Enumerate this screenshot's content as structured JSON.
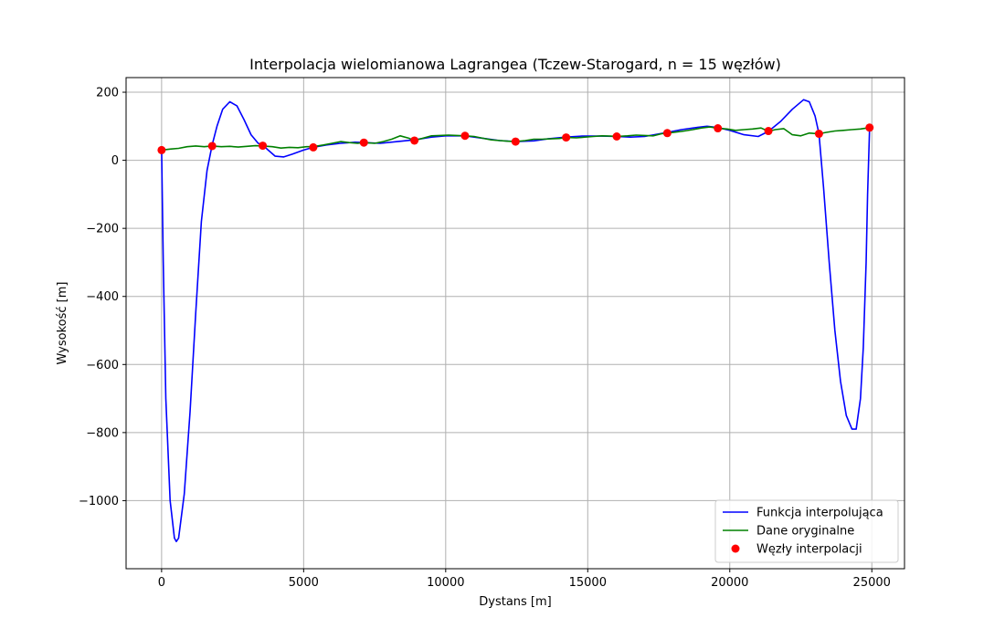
{
  "chart_data": {
    "type": "line",
    "title": "Interpolacja wielomianowa Lagrangea (Tczew-Starogard, n = 15 węzłów)",
    "xlabel": "Dystans [m]",
    "ylabel": "Wysokość [m]",
    "xlim": [
      -1250,
      26150
    ],
    "ylim": [
      -1200,
      243
    ],
    "xticks": [
      0,
      5000,
      10000,
      15000,
      20000,
      25000
    ],
    "xtick_labels": [
      "0",
      "5000",
      "10000",
      "15000",
      "20000",
      "25000"
    ],
    "yticks": [
      -1000,
      -800,
      -600,
      -400,
      -200,
      0,
      200
    ],
    "ytick_labels": [
      "−1000",
      "−800",
      "−600",
      "−400",
      "−200",
      "0",
      "200"
    ],
    "grid": true,
    "legend_position": "lower-right",
    "series": [
      {
        "name": "Funkcja interpolująca",
        "kind": "line",
        "color": "#0000ff",
        "x": [
          0,
          60,
          150,
          300,
          450,
          520,
          600,
          800,
          1000,
          1200,
          1400,
          1600,
          1780,
          1950,
          2150,
          2400,
          2650,
          2900,
          3150,
          3400,
          3560,
          3750,
          4000,
          4300,
          4600,
          5000,
          5340,
          5800,
          6300,
          6800,
          7120,
          7700,
          8300,
          8900,
          9500,
          10000,
          10680,
          11300,
          11900,
          12460,
          13100,
          13600,
          14240,
          14800,
          15500,
          16020,
          16500,
          17000,
          17800,
          18300,
          18800,
          19200,
          19600,
          20000,
          20500,
          21000,
          21360,
          21800,
          22200,
          22600,
          22800,
          23000,
          23140,
          23300,
          23500,
          23700,
          23900,
          24100,
          24300,
          24450,
          24600,
          24700,
          24800,
          24850,
          24920
        ],
        "y": [
          30,
          -300,
          -700,
          -1000,
          -1110,
          -1120,
          -1110,
          -980,
          -740,
          -450,
          -180,
          -30,
          45,
          100,
          150,
          172,
          160,
          120,
          75,
          50,
          45,
          30,
          12,
          10,
          18,
          30,
          38,
          45,
          50,
          53,
          52,
          50,
          55,
          60,
          68,
          72,
          72,
          65,
          58,
          55,
          57,
          63,
          68,
          71,
          71,
          70,
          68,
          70,
          82,
          90,
          96,
          100,
          96,
          88,
          75,
          70,
          85,
          115,
          150,
          178,
          172,
          130,
          78,
          -80,
          -300,
          -500,
          -650,
          -750,
          -790,
          -790,
          -700,
          -550,
          -300,
          -100,
          96
        ]
      },
      {
        "name": "Dane oryginalne",
        "kind": "line",
        "color": "#008000",
        "x": [
          0,
          300,
          600,
          900,
          1200,
          1500,
          1780,
          2100,
          2400,
          2700,
          3000,
          3300,
          3560,
          3900,
          4200,
          4500,
          4800,
          5100,
          5340,
          5700,
          6000,
          6300,
          6600,
          6900,
          7120,
          7500,
          7800,
          8100,
          8400,
          8700,
          8900,
          9200,
          9500,
          9800,
          10100,
          10400,
          10680,
          11000,
          11300,
          11600,
          11900,
          12200,
          12460,
          12800,
          13100,
          13400,
          13700,
          14000,
          14240,
          14600,
          14900,
          15200,
          15500,
          15800,
          16020,
          16400,
          16700,
          17000,
          17300,
          17600,
          17800,
          18100,
          18400,
          18700,
          19000,
          19300,
          19600,
          19900,
          20200,
          20500,
          20800,
          21100,
          21360,
          21600,
          21900,
          22200,
          22500,
          22800,
          23140,
          23400,
          23700,
          24000,
          24300,
          24600,
          24920
        ],
        "y": [
          30,
          33,
          35,
          40,
          42,
          40,
          42,
          40,
          41,
          39,
          41,
          43,
          42,
          40,
          36,
          38,
          37,
          40,
          40,
          45,
          50,
          55,
          52,
          50,
          52,
          50,
          55,
          62,
          72,
          65,
          58,
          65,
          72,
          73,
          74,
          73,
          72,
          70,
          65,
          60,
          58,
          56,
          55,
          58,
          62,
          62,
          63,
          64,
          67,
          66,
          68,
          70,
          72,
          71,
          70,
          72,
          74,
          73,
          72,
          78,
          80,
          83,
          86,
          90,
          95,
          98,
          94,
          92,
          88,
          90,
          92,
          95,
          85,
          90,
          93,
          75,
          72,
          80,
          78,
          82,
          86,
          88,
          90,
          92,
          96
        ]
      },
      {
        "name": "Węzły interpolacji",
        "kind": "scatter",
        "color": "#ff0000",
        "x": [
          0,
          1780,
          3560,
          5340,
          7120,
          8900,
          10680,
          12460,
          14240,
          16020,
          17800,
          19580,
          21360,
          23140,
          24920
        ],
        "y": [
          30,
          42,
          43,
          38,
          52,
          58,
          72,
          55,
          67,
          70,
          80,
          94,
          86,
          78,
          96
        ]
      }
    ]
  }
}
